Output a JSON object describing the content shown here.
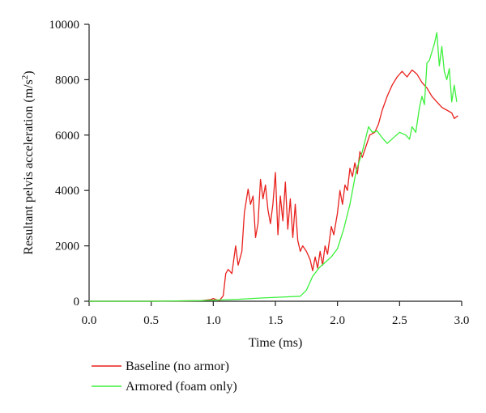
{
  "chart_data": {
    "type": "line",
    "xlabel": "Time (ms)",
    "ylabel": "Resultant pelvis acceleration (m/s",
    "ylabel_sup": "2",
    "ylabel_close": ")",
    "xlim": [
      0.0,
      3.0
    ],
    "ylim": [
      0,
      10000
    ],
    "x_ticks": [
      "0.0",
      "0.5",
      "1.0",
      "1.5",
      "2.0",
      "2.5",
      "3.0"
    ],
    "y_ticks": [
      "0",
      "2000",
      "4000",
      "6000",
      "8000",
      "10000"
    ],
    "grid": false,
    "legend_position": "bottom-left",
    "series": [
      {
        "name": "Baseline (no armor)",
        "color": "#e8211d",
        "points": [
          [
            0.0,
            0
          ],
          [
            0.5,
            0
          ],
          [
            0.9,
            20
          ],
          [
            0.98,
            60
          ],
          [
            1.0,
            100
          ],
          [
            1.02,
            60
          ],
          [
            1.05,
            30
          ],
          [
            1.08,
            200
          ],
          [
            1.1,
            1000
          ],
          [
            1.12,
            1150
          ],
          [
            1.15,
            1000
          ],
          [
            1.18,
            2000
          ],
          [
            1.2,
            1300
          ],
          [
            1.23,
            1800
          ],
          [
            1.25,
            3200
          ],
          [
            1.28,
            4050
          ],
          [
            1.3,
            3500
          ],
          [
            1.32,
            3800
          ],
          [
            1.34,
            2300
          ],
          [
            1.36,
            2800
          ],
          [
            1.38,
            4400
          ],
          [
            1.4,
            3700
          ],
          [
            1.42,
            4200
          ],
          [
            1.44,
            3300
          ],
          [
            1.46,
            2800
          ],
          [
            1.48,
            3500
          ],
          [
            1.5,
            4650
          ],
          [
            1.52,
            2400
          ],
          [
            1.54,
            3800
          ],
          [
            1.56,
            2900
          ],
          [
            1.58,
            4300
          ],
          [
            1.6,
            2600
          ],
          [
            1.62,
            3700
          ],
          [
            1.64,
            2300
          ],
          [
            1.66,
            3500
          ],
          [
            1.68,
            2200
          ],
          [
            1.7,
            1800
          ],
          [
            1.72,
            2000
          ],
          [
            1.75,
            1800
          ],
          [
            1.78,
            1500
          ],
          [
            1.8,
            1100
          ],
          [
            1.82,
            1600
          ],
          [
            1.84,
            1200
          ],
          [
            1.86,
            1800
          ],
          [
            1.88,
            1300
          ],
          [
            1.9,
            2000
          ],
          [
            1.92,
            1700
          ],
          [
            1.95,
            2700
          ],
          [
            1.97,
            2400
          ],
          [
            2.0,
            3200
          ],
          [
            2.02,
            4000
          ],
          [
            2.04,
            3500
          ],
          [
            2.06,
            4200
          ],
          [
            2.08,
            4000
          ],
          [
            2.1,
            4800
          ],
          [
            2.12,
            4500
          ],
          [
            2.14,
            5000
          ],
          [
            2.16,
            4600
          ],
          [
            2.18,
            5400
          ],
          [
            2.2,
            5200
          ],
          [
            2.23,
            5600
          ],
          [
            2.26,
            6000
          ],
          [
            2.3,
            6100
          ],
          [
            2.33,
            6400
          ],
          [
            2.36,
            6900
          ],
          [
            2.4,
            7400
          ],
          [
            2.44,
            7800
          ],
          [
            2.48,
            8100
          ],
          [
            2.52,
            8300
          ],
          [
            2.56,
            8100
          ],
          [
            2.6,
            8350
          ],
          [
            2.64,
            8200
          ],
          [
            2.68,
            7900
          ],
          [
            2.72,
            7700
          ],
          [
            2.76,
            7400
          ],
          [
            2.8,
            7200
          ],
          [
            2.84,
            7000
          ],
          [
            2.88,
            6900
          ],
          [
            2.92,
            6800
          ],
          [
            2.94,
            6600
          ],
          [
            2.97,
            6700
          ]
        ]
      },
      {
        "name": "Armored (foam only)",
        "color": "#3cf03c",
        "points": [
          [
            0.0,
            0
          ],
          [
            0.5,
            0
          ],
          [
            0.9,
            20
          ],
          [
            1.0,
            40
          ],
          [
            1.2,
            70
          ],
          [
            1.4,
            120
          ],
          [
            1.55,
            150
          ],
          [
            1.7,
            180
          ],
          [
            1.75,
            400
          ],
          [
            1.8,
            900
          ],
          [
            1.85,
            1200
          ],
          [
            1.9,
            1400
          ],
          [
            1.95,
            1600
          ],
          [
            2.0,
            1900
          ],
          [
            2.05,
            2600
          ],
          [
            2.1,
            3500
          ],
          [
            2.15,
            4700
          ],
          [
            2.2,
            5400
          ],
          [
            2.25,
            6300
          ],
          [
            2.28,
            6100
          ],
          [
            2.32,
            6150
          ],
          [
            2.36,
            5900
          ],
          [
            2.4,
            5700
          ],
          [
            2.45,
            5900
          ],
          [
            2.5,
            6100
          ],
          [
            2.55,
            6000
          ],
          [
            2.58,
            5850
          ],
          [
            2.6,
            6300
          ],
          [
            2.63,
            6100
          ],
          [
            2.66,
            7000
          ],
          [
            2.68,
            7400
          ],
          [
            2.7,
            7100
          ],
          [
            2.72,
            8600
          ],
          [
            2.74,
            8700
          ],
          [
            2.76,
            9000
          ],
          [
            2.78,
            9300
          ],
          [
            2.8,
            9700
          ],
          [
            2.82,
            8500
          ],
          [
            2.84,
            9200
          ],
          [
            2.86,
            8300
          ],
          [
            2.88,
            8000
          ],
          [
            2.9,
            8400
          ],
          [
            2.92,
            7200
          ],
          [
            2.94,
            7800
          ],
          [
            2.96,
            7200
          ]
        ]
      }
    ]
  }
}
